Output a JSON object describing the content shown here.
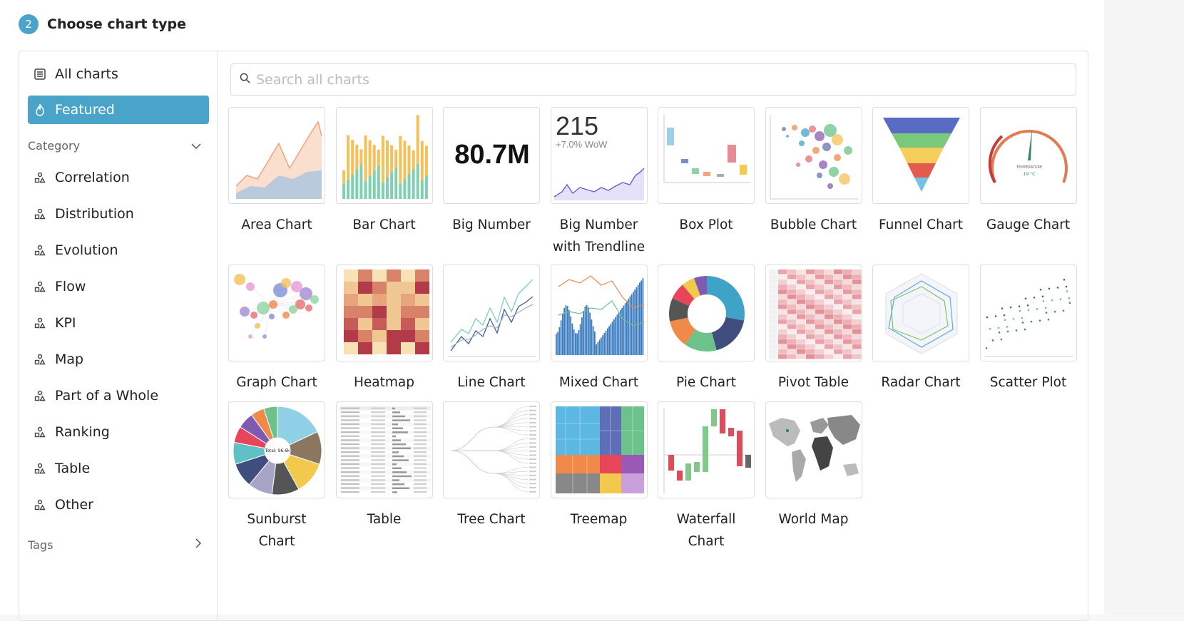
{
  "step": {
    "number": "2",
    "title": "Choose chart type"
  },
  "sidebar": {
    "all_charts": "All charts",
    "featured": "Featured",
    "category_label": "Category",
    "categories": [
      "Correlation",
      "Distribution",
      "Evolution",
      "Flow",
      "KPI",
      "Map",
      "Part of a Whole",
      "Ranking",
      "Table",
      "Other"
    ],
    "tags_label": "Tags"
  },
  "search": {
    "placeholder": "Search all charts"
  },
  "charts": [
    "Area Chart",
    "Bar Chart",
    "Big Number",
    "Big Number with Trendline",
    "Box Plot",
    "Bubble Chart",
    "Funnel Chart",
    "Gauge Chart",
    "Graph Chart",
    "Heatmap",
    "Line Chart",
    "Mixed Chart",
    "Pie Chart",
    "Pivot Table",
    "Radar Chart",
    "Scatter Plot",
    "Sunburst Chart",
    "Table",
    "Tree Chart",
    "Treemap",
    "Waterfall Chart",
    "World Map"
  ],
  "thumb_text": {
    "big_number": "80.7M",
    "trend_number": "215",
    "trend_delta": "+7.0% WoW",
    "gauge_label": "TEMPERATURE",
    "gauge_value": "19 °C",
    "sunburst_center": "Total: 96.6k"
  },
  "colors": {
    "accent": "#4aa3c8",
    "border": "#dddddd"
  }
}
